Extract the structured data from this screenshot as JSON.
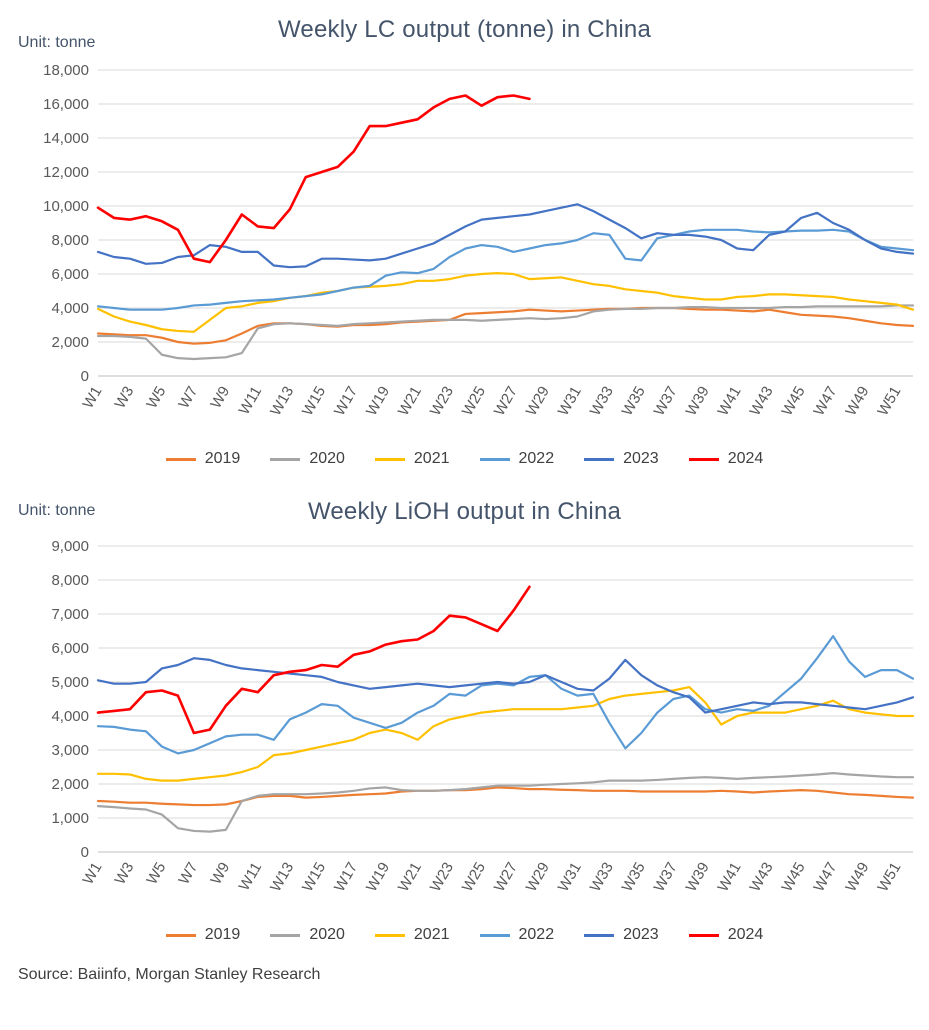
{
  "source_note": "Source: Baiinfo, Morgan Stanley Research",
  "chart_data": [
    {
      "type": "line",
      "title": "Weekly LC output (tonne) in China",
      "unit_label": "Unit: tonne",
      "grid": true,
      "legend_position": "bottom",
      "x_tick_every": 2,
      "y_axis": {
        "min": 0,
        "max": 18000,
        "step": 2000,
        "format": "thousands-comma"
      },
      "categories": [
        "W1",
        "W2",
        "W3",
        "W4",
        "W5",
        "W6",
        "W7",
        "W8",
        "W9",
        "W10",
        "W11",
        "W12",
        "W13",
        "W14",
        "W15",
        "W16",
        "W17",
        "W18",
        "W19",
        "W20",
        "W21",
        "W22",
        "W23",
        "W24",
        "W25",
        "W26",
        "W27",
        "W28",
        "W29",
        "W30",
        "W31",
        "W32",
        "W33",
        "W34",
        "W35",
        "W36",
        "W37",
        "W38",
        "W39",
        "W40",
        "W41",
        "W42",
        "W43",
        "W44",
        "W45",
        "W46",
        "W47",
        "W48",
        "W49",
        "W50",
        "W51",
        "W52"
      ],
      "series": [
        {
          "name": "2019",
          "color": "#ED7D31",
          "values": [
            2500,
            2450,
            2400,
            2400,
            2250,
            2000,
            1900,
            1950,
            2100,
            2500,
            2950,
            3100,
            3100,
            3050,
            2950,
            2900,
            3000,
            3000,
            3050,
            3150,
            3200,
            3250,
            3300,
            3650,
            3700,
            3750,
            3800,
            3900,
            3850,
            3800,
            3850,
            3900,
            3950,
            3950,
            4000,
            4000,
            4000,
            3950,
            3900,
            3900,
            3850,
            3800,
            3900,
            3750,
            3600,
            3550,
            3500,
            3400,
            3250,
            3100,
            3000,
            2950
          ]
        },
        {
          "name": "2020",
          "color": "#A5A5A5",
          "values": [
            2350,
            2350,
            2300,
            2200,
            1250,
            1050,
            1000,
            1050,
            1100,
            1350,
            2800,
            3050,
            3100,
            3050,
            3000,
            2950,
            3050,
            3100,
            3150,
            3200,
            3250,
            3300,
            3300,
            3300,
            3250,
            3300,
            3350,
            3400,
            3350,
            3400,
            3500,
            3800,
            3900,
            3950,
            3950,
            4000,
            4000,
            4050,
            4050,
            4000,
            4000,
            4000,
            4000,
            4050,
            4050,
            4100,
            4100,
            4100,
            4100,
            4100,
            4150,
            4150
          ]
        },
        {
          "name": "2021",
          "color": "#FFC000",
          "values": [
            3950,
            3500,
            3200,
            3000,
            2750,
            2650,
            2600,
            3300,
            4000,
            4100,
            4300,
            4400,
            4600,
            4700,
            4900,
            5000,
            5200,
            5250,
            5300,
            5400,
            5600,
            5600,
            5700,
            5900,
            6000,
            6050,
            6000,
            5700,
            5750,
            5800,
            5600,
            5400,
            5300,
            5100,
            5000,
            4900,
            4700,
            4600,
            4500,
            4500,
            4650,
            4700,
            4800,
            4800,
            4750,
            4700,
            4650,
            4500,
            4400,
            4300,
            4200,
            3900
          ]
        },
        {
          "name": "2022",
          "color": "#5B9BD5",
          "values": [
            4100,
            4000,
            3900,
            3900,
            3900,
            4000,
            4150,
            4200,
            4300,
            4400,
            4450,
            4500,
            4600,
            4700,
            4800,
            5000,
            5200,
            5300,
            5900,
            6100,
            6050,
            6300,
            7000,
            7500,
            7700,
            7600,
            7300,
            7500,
            7700,
            7800,
            8000,
            8400,
            8300,
            6900,
            6800,
            8100,
            8300,
            8500,
            8600,
            8600,
            8600,
            8500,
            8450,
            8500,
            8550,
            8550,
            8600,
            8500,
            8000,
            7600,
            7500,
            7400
          ]
        },
        {
          "name": "2023",
          "color": "#4472C4",
          "values": [
            7300,
            7000,
            6900,
            6600,
            6650,
            7000,
            7100,
            7700,
            7600,
            7300,
            7300,
            6500,
            6400,
            6450,
            6900,
            6900,
            6850,
            6800,
            6900,
            7200,
            7500,
            7800,
            8300,
            8800,
            9200,
            9300,
            9400,
            9500,
            9700,
            9900,
            10100,
            9700,
            9200,
            8700,
            8100,
            8400,
            8300,
            8300,
            8200,
            8000,
            7500,
            7400,
            8300,
            8500,
            9300,
            9600,
            9000,
            8600,
            8000,
            7500,
            7300,
            7200
          ]
        },
        {
          "name": "2024",
          "color": "#FF0000",
          "values": [
            9900,
            9300,
            9200,
            9400,
            9100,
            8600,
            6900,
            6700,
            8000,
            9500,
            8800,
            8700,
            9800,
            11700,
            12000,
            12300,
            13200,
            14700,
            14700,
            14900,
            15100,
            15800,
            16300,
            16500,
            15900,
            16400,
            16500,
            16300
          ]
        }
      ]
    },
    {
      "type": "line",
      "title": "Weekly LiOH output in China",
      "unit_label": "Unit: tonne",
      "grid": true,
      "legend_position": "bottom",
      "x_tick_every": 2,
      "y_axis": {
        "min": 0,
        "max": 9000,
        "step": 1000,
        "format": "thousands-comma"
      },
      "categories": [
        "W1",
        "W2",
        "W3",
        "W4",
        "W5",
        "W6",
        "W7",
        "W8",
        "W9",
        "W10",
        "W11",
        "W12",
        "W13",
        "W14",
        "W15",
        "W16",
        "W17",
        "W18",
        "W19",
        "W20",
        "W21",
        "W22",
        "W23",
        "W24",
        "W25",
        "W26",
        "W27",
        "W28",
        "W29",
        "W30",
        "W31",
        "W32",
        "W33",
        "W34",
        "W35",
        "W36",
        "W37",
        "W38",
        "W39",
        "W40",
        "W41",
        "W42",
        "W43",
        "W44",
        "W45",
        "W46",
        "W47",
        "W48",
        "W49",
        "W50",
        "W51",
        "W52"
      ],
      "series": [
        {
          "name": "2019",
          "color": "#ED7D31",
          "values": [
            1500,
            1480,
            1450,
            1450,
            1420,
            1400,
            1380,
            1380,
            1400,
            1500,
            1620,
            1650,
            1650,
            1600,
            1620,
            1650,
            1680,
            1700,
            1720,
            1780,
            1800,
            1800,
            1820,
            1820,
            1850,
            1900,
            1880,
            1850,
            1850,
            1830,
            1820,
            1800,
            1800,
            1800,
            1780,
            1780,
            1780,
            1780,
            1780,
            1800,
            1780,
            1750,
            1780,
            1800,
            1820,
            1800,
            1750,
            1700,
            1680,
            1650,
            1620,
            1600
          ]
        },
        {
          "name": "2020",
          "color": "#A5A5A5",
          "values": [
            1350,
            1320,
            1280,
            1250,
            1100,
            700,
            620,
            600,
            650,
            1500,
            1650,
            1700,
            1700,
            1700,
            1720,
            1750,
            1800,
            1870,
            1900,
            1820,
            1800,
            1800,
            1820,
            1850,
            1900,
            1950,
            1950,
            1950,
            1980,
            2000,
            2020,
            2050,
            2100,
            2100,
            2100,
            2120,
            2150,
            2180,
            2200,
            2180,
            2150,
            2180,
            2200,
            2220,
            2250,
            2280,
            2320,
            2280,
            2250,
            2220,
            2200,
            2200
          ]
        },
        {
          "name": "2021",
          "color": "#FFC000",
          "values": [
            2300,
            2300,
            2280,
            2150,
            2100,
            2100,
            2150,
            2200,
            2250,
            2350,
            2500,
            2850,
            2900,
            3000,
            3100,
            3200,
            3300,
            3500,
            3600,
            3500,
            3300,
            3700,
            3900,
            4000,
            4100,
            4150,
            4200,
            4200,
            4200,
            4200,
            4250,
            4300,
            4500,
            4600,
            4650,
            4700,
            4750,
            4850,
            4400,
            3750,
            4000,
            4100,
            4100,
            4100,
            4200,
            4300,
            4450,
            4200,
            4100,
            4050,
            4000,
            4000
          ]
        },
        {
          "name": "2022",
          "color": "#5B9BD5",
          "values": [
            3700,
            3680,
            3600,
            3550,
            3100,
            2900,
            3000,
            3200,
            3400,
            3450,
            3450,
            3300,
            3900,
            4100,
            4350,
            4300,
            3950,
            3800,
            3650,
            3800,
            4100,
            4300,
            4650,
            4600,
            4900,
            4950,
            4900,
            5150,
            5200,
            4800,
            4600,
            4650,
            3800,
            3050,
            3500,
            4100,
            4500,
            4600,
            4200,
            4100,
            4200,
            4150,
            4300,
            4700,
            5100,
            5700,
            6350,
            5600,
            5150,
            5350,
            5350,
            5100
          ]
        },
        {
          "name": "2023",
          "color": "#4472C4",
          "values": [
            5050,
            4950,
            4950,
            5000,
            5400,
            5500,
            5700,
            5650,
            5500,
            5400,
            5350,
            5300,
            5250,
            5200,
            5150,
            5000,
            4900,
            4800,
            4850,
            4900,
            4950,
            4900,
            4850,
            4900,
            4950,
            5000,
            4950,
            5000,
            5200,
            5000,
            4800,
            4750,
            5100,
            5650,
            5200,
            4900,
            4700,
            4550,
            4100,
            4200,
            4300,
            4400,
            4350,
            4400,
            4400,
            4350,
            4300,
            4250,
            4200,
            4300,
            4400,
            4550
          ]
        },
        {
          "name": "2024",
          "color": "#FF0000",
          "values": [
            4100,
            4150,
            4200,
            4700,
            4750,
            4600,
            3500,
            3600,
            4300,
            4800,
            4700,
            5200,
            5300,
            5350,
            5500,
            5450,
            5800,
            5900,
            6100,
            6200,
            6250,
            6500,
            6950,
            6900,
            6700,
            6500,
            7100,
            7800
          ]
        }
      ]
    }
  ]
}
